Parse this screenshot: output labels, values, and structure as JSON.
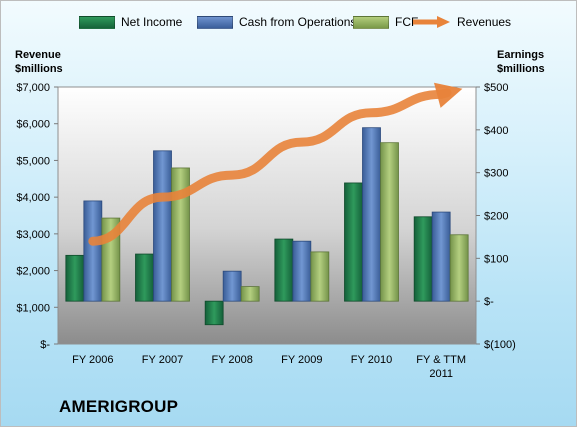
{
  "chart_data": {
    "type": "bar",
    "categories": [
      "FY 2006",
      "FY 2007",
      "FY 2008",
      "FY 2009",
      "FY 2010",
      "FY & TTM 2011"
    ],
    "series": [
      {
        "name": "Net Income",
        "axis": "right",
        "color": "#1f7a45",
        "values": [
          107,
          110,
          -55,
          145,
          276,
          197
        ]
      },
      {
        "name": "Cash from Operations",
        "axis": "right",
        "color": "#4f74b0",
        "values": [
          234,
          351,
          70,
          140,
          405,
          208
        ]
      },
      {
        "name": "FCF",
        "axis": "right",
        "color": "#8fb05a",
        "values": [
          194,
          311,
          34,
          115,
          370,
          155
        ]
      },
      {
        "name": "Revenues",
        "axis": "left",
        "type": "arrow-line",
        "color": "#e8833a",
        "values": [
          2800,
          4000,
          4600,
          5500,
          6300,
          6800
        ]
      }
    ],
    "left_axis": {
      "title": "Revenue\n$millions",
      "range": [
        0,
        7000
      ],
      "ticks": [
        "$-",
        "$1,000",
        "$2,000",
        "$3,000",
        "$4,000",
        "$5,000",
        "$6,000",
        "$7,000"
      ]
    },
    "right_axis": {
      "title": "Earnings\n$millions",
      "range": [
        -100,
        500
      ],
      "ticks": [
        "$(100)",
        "$-",
        "$100",
        "$200",
        "$300",
        "$400",
        "$500"
      ]
    },
    "legend_position": "top",
    "grid": false
  },
  "brand": "AMERIGROUP",
  "colors": {
    "net_income": "#1f7a45",
    "cash_ops": "#4f74b0",
    "fcf": "#8fb05a",
    "revenues": "#e8833a"
  }
}
